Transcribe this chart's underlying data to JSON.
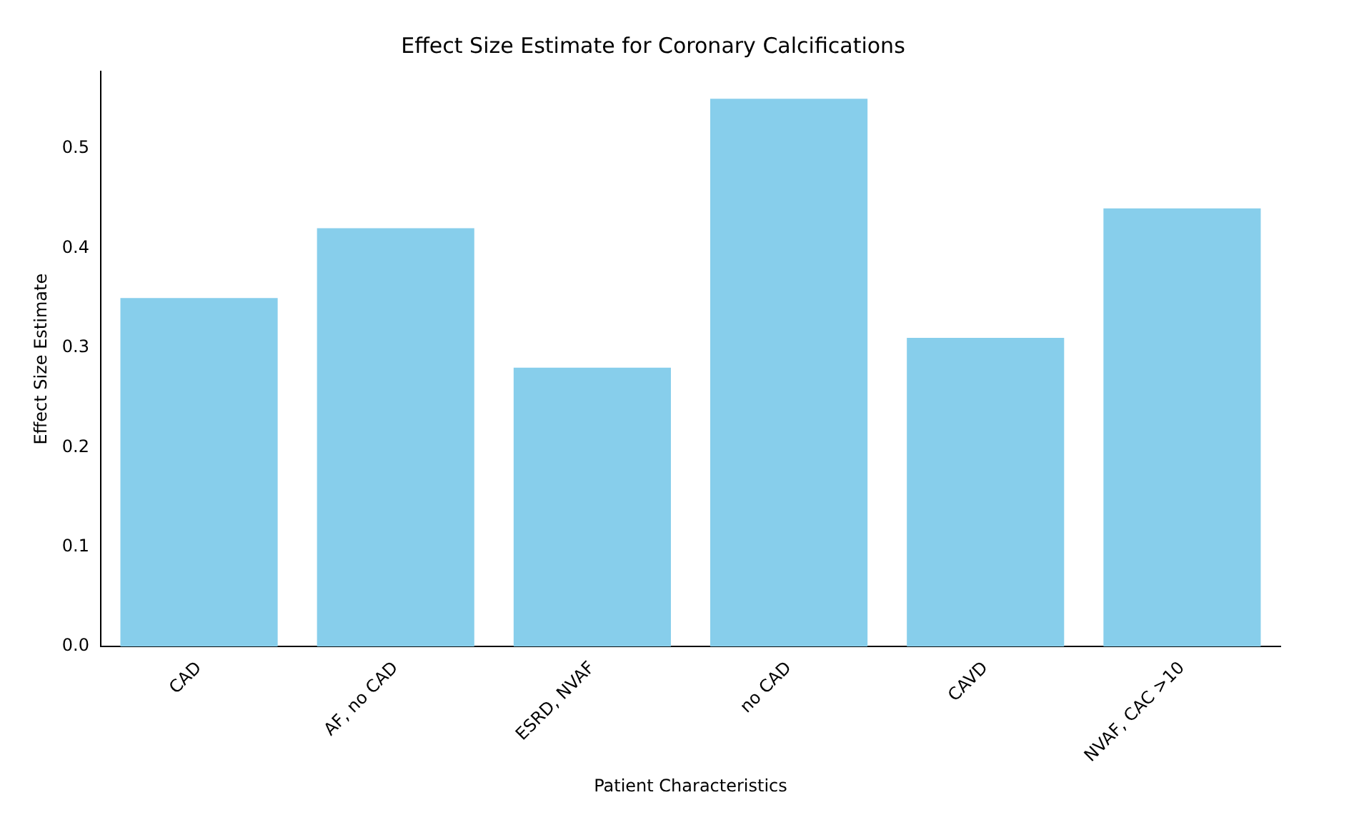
{
  "chart_data": {
    "type": "bar",
    "title": "Effect Size Estimate for Coronary Calcifications",
    "xlabel": "Patient Characteristics",
    "ylabel": "Effect Size Estimate",
    "categories": [
      "CAD",
      "AF, no CAD",
      "ESRD, NVAF",
      "no CAD",
      "CAVD",
      "NVAF, CAC >10"
    ],
    "values": [
      0.35,
      0.42,
      0.28,
      0.55,
      0.31,
      0.44
    ],
    "color": "#87ceeb",
    "ylim": [
      0,
      0.5775
    ],
    "yticks": [
      {
        "value": 0,
        "label": "0.0"
      },
      0.1,
      0.2,
      0.3,
      0.4,
      0.5
    ],
    "grid": false,
    "legend": false
  }
}
